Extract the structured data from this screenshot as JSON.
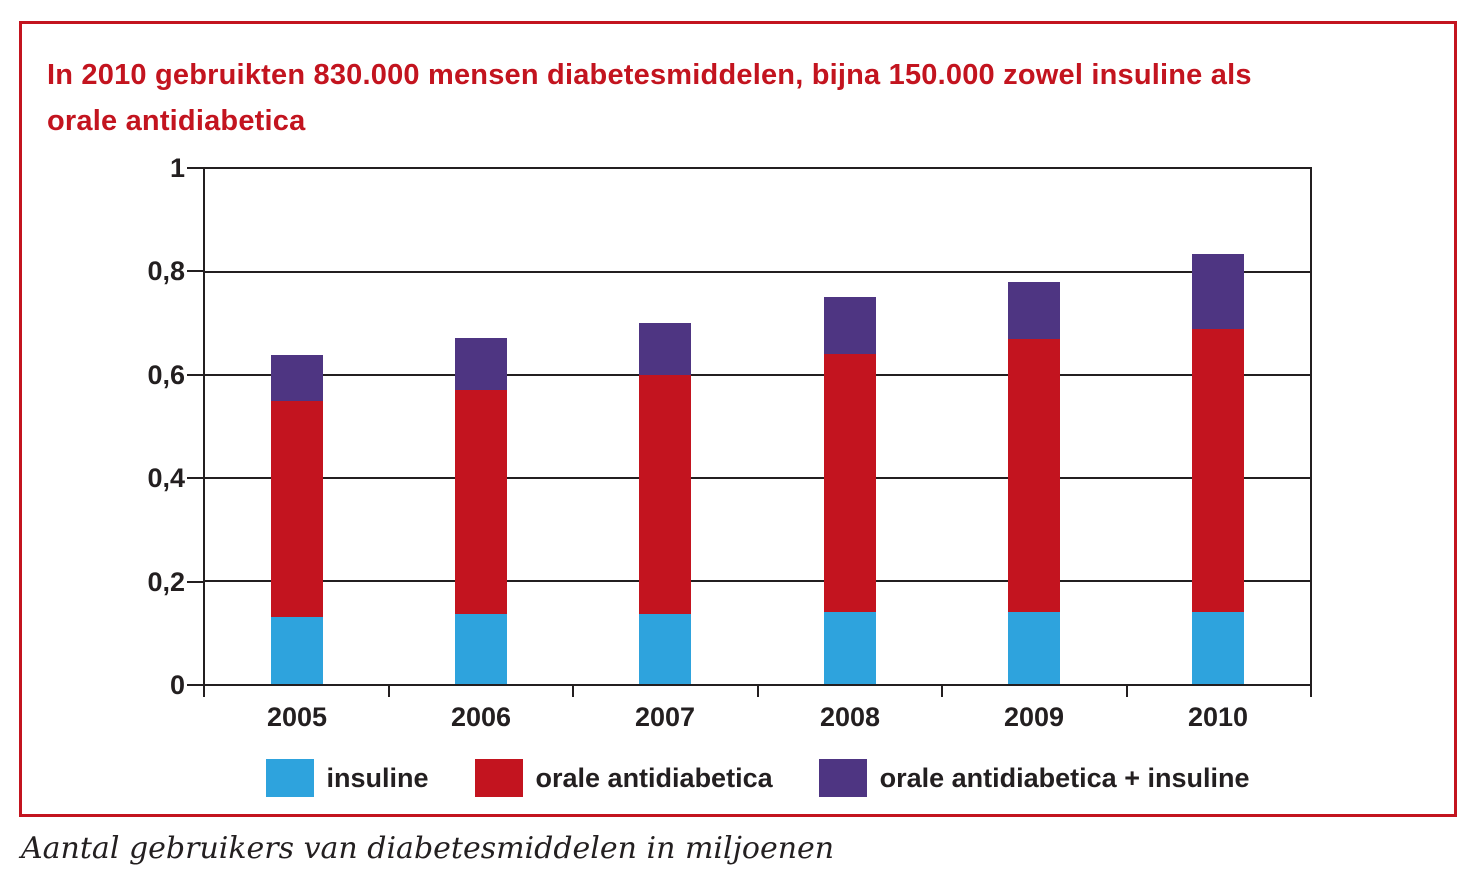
{
  "colors": {
    "accent": "#C3141F",
    "ink": "#231F20",
    "background": "#FFFFFF"
  },
  "title": {
    "line1": "In 2010 gebruikten 830.000 mensen diabetesmiddelen, bijna 150.000 zowel insuline als",
    "line2": "orale antidiabetica"
  },
  "footer": {
    "caption": "Aantal gebruikers van diabetesmiddelen in miljoenen"
  },
  "chart_data": {
    "type": "bar",
    "stacked": true,
    "title": "In 2010 gebruikten 830.000 mensen diabetesmiddelen, bijna 150.000 zowel insuline als orale antidiabetica",
    "xlabel": "",
    "ylabel": "Aantal gebruikers van diabetesmiddelen in miljoenen",
    "categories": [
      "2005",
      "2006",
      "2007",
      "2008",
      "2009",
      "2010"
    ],
    "series": [
      {
        "name": "insuline",
        "color": "#2EA3DD",
        "values": [
          0.13,
          0.135,
          0.135,
          0.14,
          0.14,
          0.14
        ]
      },
      {
        "name": "orale antidiabetica",
        "color": "#C3141F",
        "values": [
          0.42,
          0.435,
          0.465,
          0.5,
          0.53,
          0.55
        ]
      },
      {
        "name": "orale antidiabetica + insuline",
        "color": "#4E3582",
        "values": [
          0.09,
          0.1,
          0.1,
          0.11,
          0.11,
          0.145
        ]
      }
    ],
    "stack_totals": [
      0.64,
      0.67,
      0.7,
      0.75,
      0.78,
      0.835
    ],
    "ylim": [
      0,
      1
    ],
    "yticks": [
      {
        "value": 0,
        "label": "0"
      },
      {
        "value": 0.2,
        "label": "0,2"
      },
      {
        "value": 0.4,
        "label": "0,4"
      },
      {
        "value": 0.6,
        "label": "0,6"
      },
      {
        "value": 0.8,
        "label": "0,8"
      },
      {
        "value": 1,
        "label": "1"
      }
    ],
    "grid": true,
    "legend_position": "bottom"
  }
}
